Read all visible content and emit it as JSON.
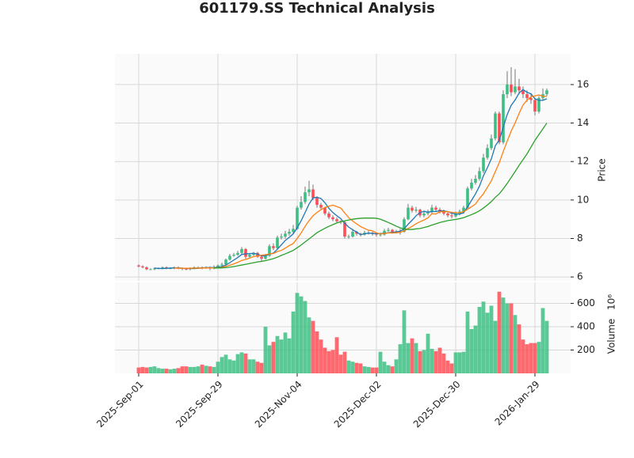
{
  "chart_data": {
    "type": "candlestick",
    "title": "601179.SS Technical Analysis",
    "ylabel": "Price",
    "volume_ylabel": "Volume",
    "volume_offset": "10⁶",
    "up_color": "#3dbf84",
    "down_color": "#ff4d55",
    "grid": true,
    "categories": [
      "2025-Sep-01",
      null,
      null,
      null,
      null,
      null,
      null,
      null,
      null,
      null,
      null,
      null,
      null,
      null,
      null,
      null,
      null,
      null,
      null,
      null,
      "2025-Sep-29",
      null,
      null,
      null,
      null,
      null,
      null,
      null,
      null,
      null,
      null,
      null,
      null,
      null,
      null,
      null,
      null,
      null,
      null,
      null,
      "2025-Nov-04",
      null,
      null,
      null,
      null,
      null,
      null,
      null,
      null,
      null,
      null,
      null,
      null,
      null,
      null,
      null,
      null,
      null,
      null,
      null,
      "2025-Dec-02",
      null,
      null,
      null,
      null,
      null,
      null,
      null,
      null,
      null,
      null,
      null,
      null,
      null,
      null,
      null,
      null,
      null,
      null,
      null,
      "2025-Dec-30",
      null,
      null,
      null,
      null,
      null,
      null,
      null,
      null,
      null,
      null,
      null,
      null,
      null,
      null,
      null,
      null,
      null,
      null,
      null,
      "2026-Jan-29",
      null,
      null,
      null
    ],
    "open": [
      6.6,
      6.55,
      6.5,
      6.4,
      6.4,
      6.45,
      6.45,
      6.5,
      6.45,
      6.45,
      6.5,
      6.45,
      6.42,
      6.4,
      6.45,
      6.5,
      6.5,
      6.48,
      6.5,
      6.45,
      6.5,
      6.6,
      6.65,
      6.9,
      7.1,
      7.15,
      7.25,
      7.45,
      7.05,
      7.15,
      7.25,
      7.05,
      6.95,
      7.1,
      7.6,
      7.5,
      8.05,
      8.1,
      8.25,
      8.35,
      8.5,
      9.6,
      9.9,
      10.4,
      10.55,
      10.1,
      9.75,
      9.6,
      9.3,
      9.1,
      9.0,
      8.9,
      8.85,
      8.1,
      8.1,
      8.35,
      8.25,
      8.2,
      8.3,
      8.3,
      8.25,
      8.2,
      8.2,
      8.4,
      8.45,
      8.35,
      8.35,
      8.35,
      9.0,
      9.6,
      9.45,
      9.5,
      9.2,
      9.3,
      9.4,
      9.6,
      9.5,
      9.4,
      9.3,
      9.2,
      9.15,
      9.3,
      9.4,
      9.6,
      10.6,
      10.9,
      11.1,
      11.5,
      12.2,
      12.7,
      13.2,
      14.5,
      13.0,
      15.5,
      16.0,
      15.6,
      15.9,
      15.7,
      15.5,
      15.3,
      15.2,
      14.6,
      15.3,
      15.5
    ],
    "high": [
      6.65,
      6.6,
      6.55,
      6.45,
      6.5,
      6.5,
      6.55,
      6.55,
      6.5,
      6.55,
      6.55,
      6.5,
      6.48,
      6.5,
      6.55,
      6.55,
      6.55,
      6.55,
      6.55,
      6.6,
      6.65,
      6.75,
      6.95,
      7.2,
      7.25,
      7.35,
      7.55,
      7.5,
      7.25,
      7.3,
      7.3,
      7.1,
      7.2,
      7.7,
      7.75,
      8.15,
      8.25,
      8.4,
      8.5,
      8.7,
      9.7,
      10.2,
      10.7,
      11.0,
      10.8,
      10.2,
      9.85,
      9.65,
      9.4,
      9.2,
      9.1,
      8.95,
      8.9,
      8.2,
      8.45,
      8.4,
      8.3,
      8.4,
      8.4,
      8.35,
      8.3,
      8.3,
      8.5,
      8.55,
      8.5,
      8.45,
      8.5,
      9.1,
      9.8,
      9.7,
      9.65,
      9.55,
      9.45,
      9.5,
      9.75,
      9.7,
      9.6,
      9.5,
      9.4,
      9.3,
      9.4,
      9.5,
      9.7,
      10.7,
      11.1,
      11.3,
      11.7,
      12.4,
      12.9,
      13.4,
      14.6,
      14.6,
      15.7,
      16.7,
      16.9,
      16.8,
      16.3,
      15.9,
      15.7,
      15.5,
      15.3,
      15.4,
      15.8,
      15.8
    ],
    "low": [
      6.5,
      6.45,
      6.35,
      6.35,
      6.35,
      6.4,
      6.4,
      6.4,
      6.4,
      6.4,
      6.4,
      6.35,
      6.35,
      6.35,
      6.4,
      6.45,
      6.4,
      6.42,
      6.35,
      6.4,
      6.45,
      6.55,
      6.6,
      6.85,
      7.05,
      7.1,
      7.2,
      6.95,
      7.0,
      7.1,
      7.0,
      6.85,
      6.9,
      7.05,
      7.4,
      7.45,
      7.95,
      8.0,
      8.15,
      8.25,
      8.45,
      9.5,
      9.8,
      10.2,
      10.0,
      9.6,
      9.5,
      9.2,
      9.0,
      8.9,
      8.8,
      8.75,
      8.0,
      8.0,
      8.05,
      8.15,
      8.1,
      8.15,
      8.2,
      8.15,
      8.1,
      8.1,
      8.15,
      8.35,
      8.25,
      8.25,
      8.2,
      8.3,
      8.95,
      9.35,
      9.35,
      9.1,
      9.1,
      9.2,
      9.3,
      9.4,
      9.3,
      9.2,
      9.1,
      9.05,
      9.1,
      9.2,
      9.3,
      9.55,
      10.5,
      10.8,
      11.0,
      11.4,
      12.1,
      12.6,
      13.1,
      12.9,
      12.9,
      15.3,
      15.4,
      15.5,
      15.5,
      15.3,
      15.1,
      15.0,
      14.4,
      14.5,
      15.2,
      15.4
    ],
    "close": [
      6.55,
      6.5,
      6.4,
      6.4,
      6.45,
      6.45,
      6.5,
      6.45,
      6.45,
      6.5,
      6.45,
      6.42,
      6.4,
      6.45,
      6.5,
      6.5,
      6.48,
      6.5,
      6.45,
      6.5,
      6.6,
      6.65,
      6.9,
      7.1,
      7.15,
      7.25,
      7.45,
      7.05,
      7.15,
      7.25,
      7.05,
      6.95,
      7.1,
      7.6,
      7.5,
      8.05,
      8.1,
      8.25,
      8.35,
      8.5,
      9.6,
      9.9,
      10.4,
      10.55,
      10.1,
      9.75,
      9.6,
      9.3,
      9.1,
      9.0,
      8.9,
      8.85,
      8.1,
      8.1,
      8.35,
      8.25,
      8.2,
      8.3,
      8.3,
      8.25,
      8.2,
      8.2,
      8.4,
      8.45,
      8.35,
      8.35,
      8.35,
      9.0,
      9.6,
      9.45,
      9.5,
      9.2,
      9.3,
      9.4,
      9.6,
      9.5,
      9.4,
      9.3,
      9.2,
      9.15,
      9.3,
      9.4,
      9.6,
      10.6,
      10.9,
      11.1,
      11.5,
      12.2,
      12.7,
      13.2,
      14.5,
      13.0,
      15.5,
      16.0,
      15.6,
      15.9,
      15.7,
      15.5,
      15.3,
      15.2,
      14.6,
      15.3,
      15.5,
      15.7
    ],
    "volume": [
      50,
      55,
      50,
      55,
      60,
      45,
      40,
      40,
      35,
      40,
      45,
      60,
      60,
      55,
      55,
      60,
      75,
      65,
      60,
      55,
      100,
      140,
      160,
      120,
      110,
      165,
      180,
      170,
      120,
      120,
      100,
      90,
      400,
      240,
      270,
      320,
      290,
      350,
      300,
      530,
      690,
      660,
      620,
      480,
      450,
      360,
      290,
      220,
      190,
      200,
      310,
      160,
      185,
      110,
      100,
      90,
      85,
      60,
      55,
      50,
      50,
      185,
      100,
      70,
      60,
      120,
      250,
      540,
      260,
      300,
      260,
      190,
      200,
      340,
      210,
      190,
      220,
      170,
      110,
      85,
      180,
      180,
      185,
      530,
      380,
      410,
      570,
      615,
      520,
      580,
      450,
      700,
      650,
      600,
      600,
      500,
      420,
      290,
      250,
      260,
      260,
      270,
      560,
      450
    ],
    "moving_averages": [
      {
        "color": "#1f77b4",
        "values": [
          null,
          null,
          null,
          null,
          6.46,
          6.44,
          6.44,
          6.45,
          6.46,
          6.47,
          6.47,
          6.45,
          6.44,
          6.44,
          6.44,
          6.45,
          6.47,
          6.49,
          6.49,
          6.49,
          6.51,
          6.54,
          6.62,
          6.74,
          6.88,
          7.01,
          7.17,
          7.2,
          7.21,
          7.23,
          7.19,
          7.09,
          7.1,
          7.19,
          7.24,
          7.44,
          7.67,
          7.9,
          8.06,
          8.24,
          8.56,
          8.92,
          9.35,
          9.79,
          10.11,
          10.14,
          10.08,
          9.86,
          9.57,
          9.35,
          9.18,
          9.03,
          8.79,
          8.59,
          8.46,
          8.33,
          8.2,
          8.24,
          8.28,
          8.26,
          8.25,
          8.25,
          8.27,
          8.3,
          8.32,
          8.35,
          8.38,
          8.5,
          8.74,
          8.95,
          9.18,
          9.35,
          9.41,
          9.37,
          9.4,
          9.4,
          9.44,
          9.44,
          9.4,
          9.31,
          9.27,
          9.27,
          9.33,
          9.65,
          9.98,
          10.32,
          10.72,
          11.26,
          11.68,
          12.14,
          12.82,
          13.12,
          13.78,
          14.44,
          14.92,
          15.2,
          15.56,
          15.74,
          15.6,
          15.52,
          15.26,
          15.18,
          15.18,
          15.26
        ]
      },
      {
        "color": "#ff7f0e",
        "values": [
          null,
          null,
          null,
          null,
          null,
          null,
          null,
          null,
          null,
          6.46,
          6.46,
          6.45,
          6.45,
          6.45,
          6.46,
          6.46,
          6.46,
          6.47,
          6.47,
          6.47,
          6.48,
          6.5,
          6.55,
          6.61,
          6.68,
          6.76,
          6.86,
          6.91,
          6.98,
          7.06,
          7.1,
          7.13,
          7.15,
          7.2,
          7.22,
          7.32,
          7.38,
          7.5,
          7.63,
          7.74,
          8.0,
          8.29,
          8.63,
          8.93,
          9.18,
          9.35,
          9.5,
          9.61,
          9.68,
          9.73,
          9.66,
          9.58,
          9.33,
          9.08,
          8.91,
          8.76,
          8.62,
          8.52,
          8.43,
          8.4,
          8.29,
          8.23,
          8.26,
          8.29,
          8.29,
          8.3,
          8.32,
          8.39,
          8.52,
          8.63,
          8.77,
          8.87,
          8.96,
          9.07,
          9.29,
          9.27,
          9.39,
          9.4,
          9.39,
          9.36,
          9.34,
          9.34,
          9.39,
          9.52,
          9.65,
          9.79,
          10.08,
          10.32,
          10.66,
          11.0,
          11.48,
          11.94,
          12.52,
          13.06,
          13.58,
          14.01,
          14.5,
          14.94,
          15.19,
          15.36,
          15.41,
          15.46,
          15.39,
          15.39
        ]
      },
      {
        "color": "#2ca02c",
        "values": [
          null,
          null,
          null,
          null,
          null,
          null,
          null,
          null,
          null,
          null,
          null,
          null,
          null,
          null,
          null,
          null,
          null,
          null,
          null,
          6.46,
          6.47,
          6.47,
          6.49,
          6.51,
          6.54,
          6.58,
          6.62,
          6.66,
          6.7,
          6.74,
          6.78,
          6.81,
          6.85,
          6.9,
          6.95,
          7.03,
          7.12,
          7.2,
          7.29,
          7.38,
          7.52,
          7.66,
          7.82,
          7.98,
          8.14,
          8.3,
          8.42,
          8.53,
          8.63,
          8.72,
          8.81,
          8.87,
          8.92,
          8.96,
          9.0,
          9.03,
          9.05,
          9.06,
          9.06,
          9.06,
          9.05,
          9.0,
          8.92,
          8.83,
          8.74,
          8.64,
          8.55,
          8.5,
          8.47,
          8.47,
          8.5,
          8.52,
          8.57,
          8.62,
          8.7,
          8.76,
          8.83,
          8.88,
          8.93,
          8.96,
          8.99,
          9.03,
          9.08,
          9.16,
          9.24,
          9.33,
          9.44,
          9.58,
          9.74,
          9.92,
          10.14,
          10.32,
          10.58,
          10.86,
          11.17,
          11.48,
          11.8,
          12.1,
          12.4,
          12.75,
          13.1,
          13.4,
          13.7,
          14.0
        ]
      }
    ],
    "ylim": [
      5.8,
      17.6
    ],
    "yticks": [
      6,
      8,
      10,
      12,
      14,
      16
    ],
    "volume_ylim": [
      0,
      780
    ],
    "volume_yticks": [
      200,
      400,
      600
    ]
  }
}
